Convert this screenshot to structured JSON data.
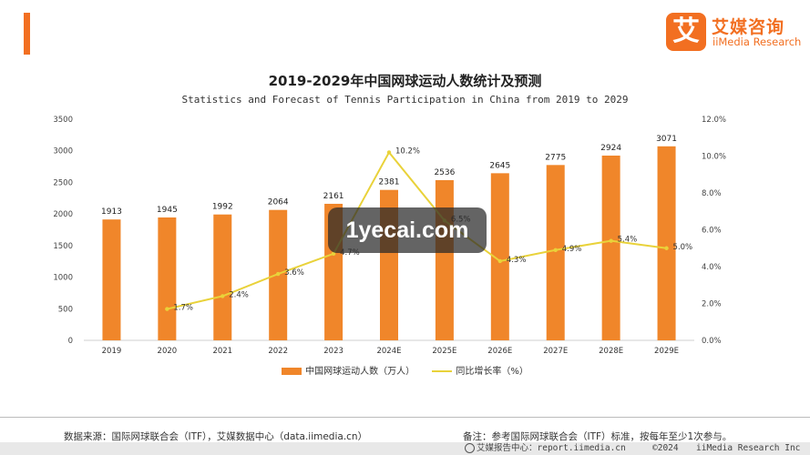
{
  "colors": {
    "accent": "#f26f21",
    "bar": "#f0862a",
    "line": "#e9d23a",
    "axis_text": "#444444"
  },
  "logo": {
    "mark": "艾",
    "name_cn": "艾媒咨询",
    "name_en": "iiMedia Research"
  },
  "watermark": "1yecai.com",
  "legend": {
    "bar": "中国网球运动人数（万人）",
    "line": "同比增长率（%）"
  },
  "footer": {
    "source": "数据来源：国际网球联合会（ITF），艾媒数据中心（data.iimedia.cn）",
    "note": "备注：参考国际网球联合会（ITF）标准，按每年至少1次参与。",
    "report": "艾媒报告中心：report.iimedia.cn",
    "copyright": "©2024",
    "company": "iiMedia Research  Inc"
  },
  "chart_data": {
    "type": "bar",
    "title": "2019-2029年中国网球运动人数统计及预测",
    "subtitle": "Statistics and Forecast of Tennis Participation in China from 2019 to 2029",
    "categories": [
      "2019",
      "2020",
      "2021",
      "2022",
      "2023",
      "2024E",
      "2025E",
      "2026E",
      "2027E",
      "2028E",
      "2029E"
    ],
    "series": [
      {
        "type": "bar",
        "axis": "left",
        "values": [
          1913,
          1945,
          1992,
          2064,
          2161,
          2381,
          2536,
          2645,
          2775,
          2924,
          3071
        ],
        "labels": [
          "1913",
          "1945",
          "1992",
          "2064",
          "2161",
          "2381",
          "2536",
          "2645",
          "2775",
          "2924",
          "3071"
        ]
      },
      {
        "type": "line",
        "axis": "right",
        "values": [
          null,
          1.7,
          2.4,
          3.6,
          4.7,
          10.2,
          6.5,
          4.3,
          4.9,
          5.4,
          5.0
        ],
        "labels": [
          "",
          "1.7%",
          "2.4%",
          "3.6%",
          "4.7%",
          "10.2%",
          "6.5%",
          "4.3%",
          "4.9%",
          "5.4%",
          "5.0%"
        ]
      }
    ],
    "y_left": {
      "min": 0,
      "max": 3500,
      "ticks": [
        0,
        500,
        1000,
        1500,
        2000,
        2500,
        3000,
        3500
      ],
      "tick_labels": [
        "0",
        "500",
        "1000",
        "1500",
        "2000",
        "2500",
        "3000",
        "3500"
      ]
    },
    "y_right": {
      "min": 0,
      "max": 12,
      "ticks": [
        0,
        2,
        4,
        6,
        8,
        10,
        12
      ],
      "tick_labels": [
        "0.0%",
        "2.0%",
        "4.0%",
        "6.0%",
        "8.0%",
        "10.0%",
        "12.0%"
      ]
    },
    "grid": false,
    "legend_position": "bottom"
  }
}
